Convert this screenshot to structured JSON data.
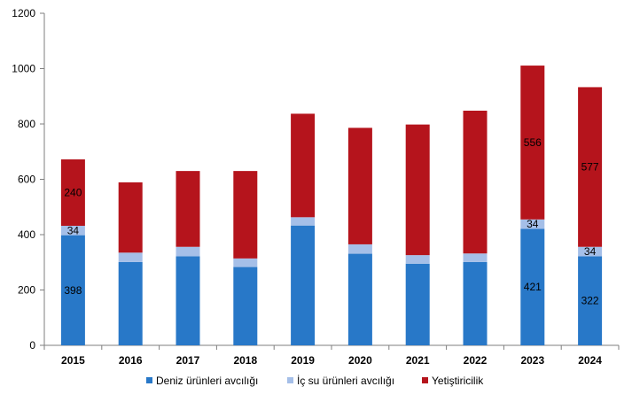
{
  "chart_data": {
    "type": "bar",
    "stacked": true,
    "categories": [
      "2015",
      "2016",
      "2017",
      "2018",
      "2019",
      "2020",
      "2021",
      "2022",
      "2023",
      "2024"
    ],
    "ylim": [
      0,
      1200
    ],
    "yticks": [
      "0",
      "200",
      "400",
      "600",
      "800",
      "1000",
      "1200"
    ],
    "grid": false,
    "legend_position": "bottom",
    "series": [
      {
        "name": "Deniz ürünleri avcılığı",
        "color": "#2878c8",
        "values": [
          398,
          301,
          322,
          283,
          433,
          331,
          295,
          301,
          421,
          322
        ],
        "labels": [
          "398",
          null,
          null,
          null,
          null,
          null,
          null,
          null,
          "421",
          "322"
        ]
      },
      {
        "name": "İç su ürünleri avcılığı",
        "color": "#a5bfe8",
        "values": [
          34,
          34,
          34,
          31,
          30,
          34,
          31,
          31,
          34,
          34
        ],
        "labels": [
          "34",
          null,
          null,
          null,
          null,
          null,
          null,
          null,
          "34",
          "34"
        ]
      },
      {
        "name": "Yetiştiricilik",
        "color": "#b5141c",
        "values": [
          240,
          254,
          274,
          316,
          374,
          421,
          472,
          516,
          556,
          577
        ],
        "labels": [
          "240",
          null,
          null,
          null,
          null,
          null,
          null,
          null,
          "556",
          "577"
        ]
      }
    ]
  }
}
